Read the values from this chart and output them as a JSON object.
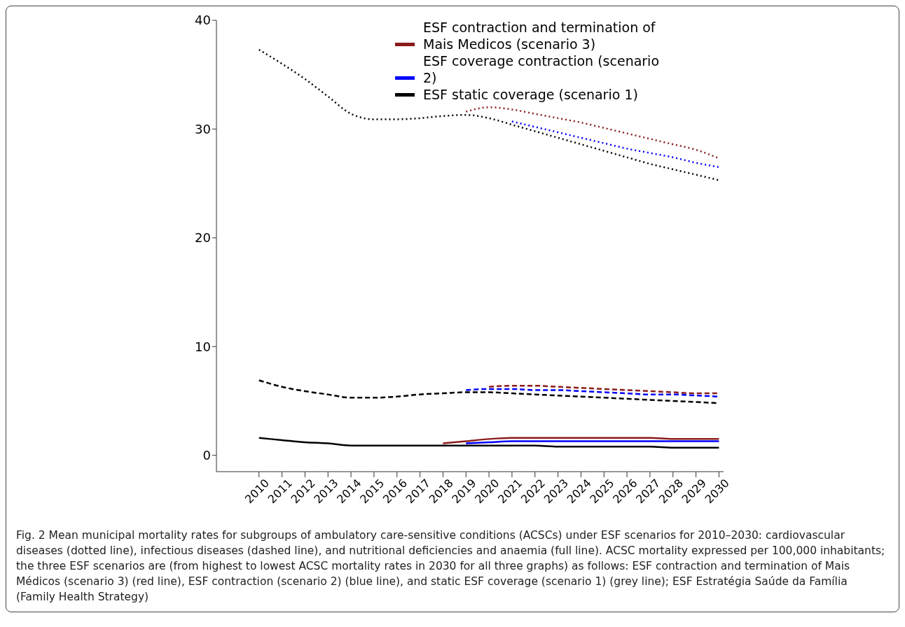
{
  "chart_data": {
    "type": "line",
    "categories": [
      "2010",
      "2011",
      "2012",
      "2013",
      "2014",
      "2015",
      "2016",
      "2017",
      "2018",
      "2019",
      "2020",
      "2021",
      "2022",
      "2023",
      "2024",
      "2025",
      "2026",
      "2027",
      "2028",
      "2029",
      "2030"
    ],
    "series": [
      {
        "name": "ESF contraction and termination of Mais Medicos (scenario 3)",
        "color": "#8b1c1c",
        "line_style": "dotted",
        "values": [
          null,
          null,
          null,
          null,
          null,
          null,
          null,
          null,
          null,
          31.6,
          32.0,
          31.8,
          31.4,
          31.0,
          30.6,
          30.1,
          29.6,
          29.1,
          28.6,
          28.1,
          27.3
        ]
      },
      {
        "name": "ESF coverage contraction (scenario 2)",
        "color": "#0000ff",
        "line_style": "dotted",
        "values": [
          null,
          null,
          null,
          null,
          null,
          null,
          null,
          null,
          null,
          null,
          null,
          30.7,
          30.2,
          29.7,
          29.2,
          28.7,
          28.2,
          27.8,
          27.4,
          26.9,
          26.5
        ]
      },
      {
        "name": "ESF static coverage (scenario 1)",
        "color": "#000000",
        "line_style": "dotted",
        "values": [
          37.3,
          36.0,
          34.6,
          33.0,
          31.4,
          30.9,
          30.9,
          31.0,
          31.2,
          31.3,
          31.0,
          30.4,
          29.8,
          29.2,
          28.6,
          28.0,
          27.4,
          26.8,
          26.3,
          25.8,
          25.3
        ]
      },
      {
        "color": "#8b1c1c",
        "line_style": "dashed",
        "values": [
          null,
          null,
          null,
          null,
          null,
          null,
          null,
          null,
          null,
          null,
          6.3,
          6.4,
          6.4,
          6.3,
          6.2,
          6.1,
          6.0,
          5.9,
          5.8,
          5.7,
          5.7
        ]
      },
      {
        "color": "#0000ff",
        "line_style": "dashed",
        "values": [
          null,
          null,
          null,
          null,
          null,
          null,
          null,
          null,
          null,
          6.0,
          6.1,
          6.1,
          6.0,
          6.0,
          5.9,
          5.8,
          5.7,
          5.6,
          5.6,
          5.5,
          5.4
        ]
      },
      {
        "color": "#000000",
        "line_style": "dashed",
        "values": [
          6.9,
          6.3,
          5.9,
          5.6,
          5.3,
          5.3,
          5.4,
          5.6,
          5.7,
          5.8,
          5.8,
          5.7,
          5.6,
          5.5,
          5.4,
          5.3,
          5.2,
          5.1,
          5.0,
          4.9,
          4.8
        ]
      },
      {
        "color": "#8b1c1c",
        "line_style": "solid",
        "values": [
          null,
          null,
          null,
          null,
          null,
          null,
          null,
          null,
          1.1,
          1.3,
          1.5,
          1.6,
          1.6,
          1.6,
          1.6,
          1.6,
          1.6,
          1.6,
          1.5,
          1.5,
          1.5
        ]
      },
      {
        "color": "#0000ff",
        "line_style": "solid",
        "values": [
          null,
          null,
          null,
          null,
          null,
          null,
          null,
          null,
          null,
          1.1,
          1.2,
          1.3,
          1.3,
          1.3,
          1.3,
          1.3,
          1.3,
          1.3,
          1.3,
          1.3,
          1.3
        ]
      },
      {
        "color": "#000000",
        "line_style": "solid",
        "values": [
          1.6,
          1.4,
          1.2,
          1.1,
          0.9,
          0.9,
          0.9,
          0.9,
          0.9,
          0.9,
          0.9,
          0.9,
          0.9,
          0.8,
          0.8,
          0.8,
          0.8,
          0.8,
          0.7,
          0.7,
          0.7
        ]
      }
    ],
    "ylim": [
      -1.5,
      40
    ],
    "yticks": [
      0,
      10,
      20,
      30,
      40
    ],
    "grid": false,
    "legend": "top right",
    "marker": "none",
    "annotations": [
      "Fig. 2 Mean municipal mortality rates for subgroups of ambulatory care-sensitive conditions (ACSCs) under ESF scenarios for 2010–2030: cardiovascular diseases (dotted line), infectious diseases (dashed line), and nutritional deficiencies and anaemia (full line). ACSC mortality expressed per 100,000 inhabitants; the three ESF scenarios are (from highest to lowest ACSC mortality rates in 2030 for all three graphs) as follows: ESF contraction and termination of Mais Médicos (scenario 3) (red line), ESF contraction (scenario 2) (blue line), and static ESF coverage (scenario 1) (grey line); ESF Estratégia Saúde da Família (Family Health Strategy)"
    ]
  }
}
